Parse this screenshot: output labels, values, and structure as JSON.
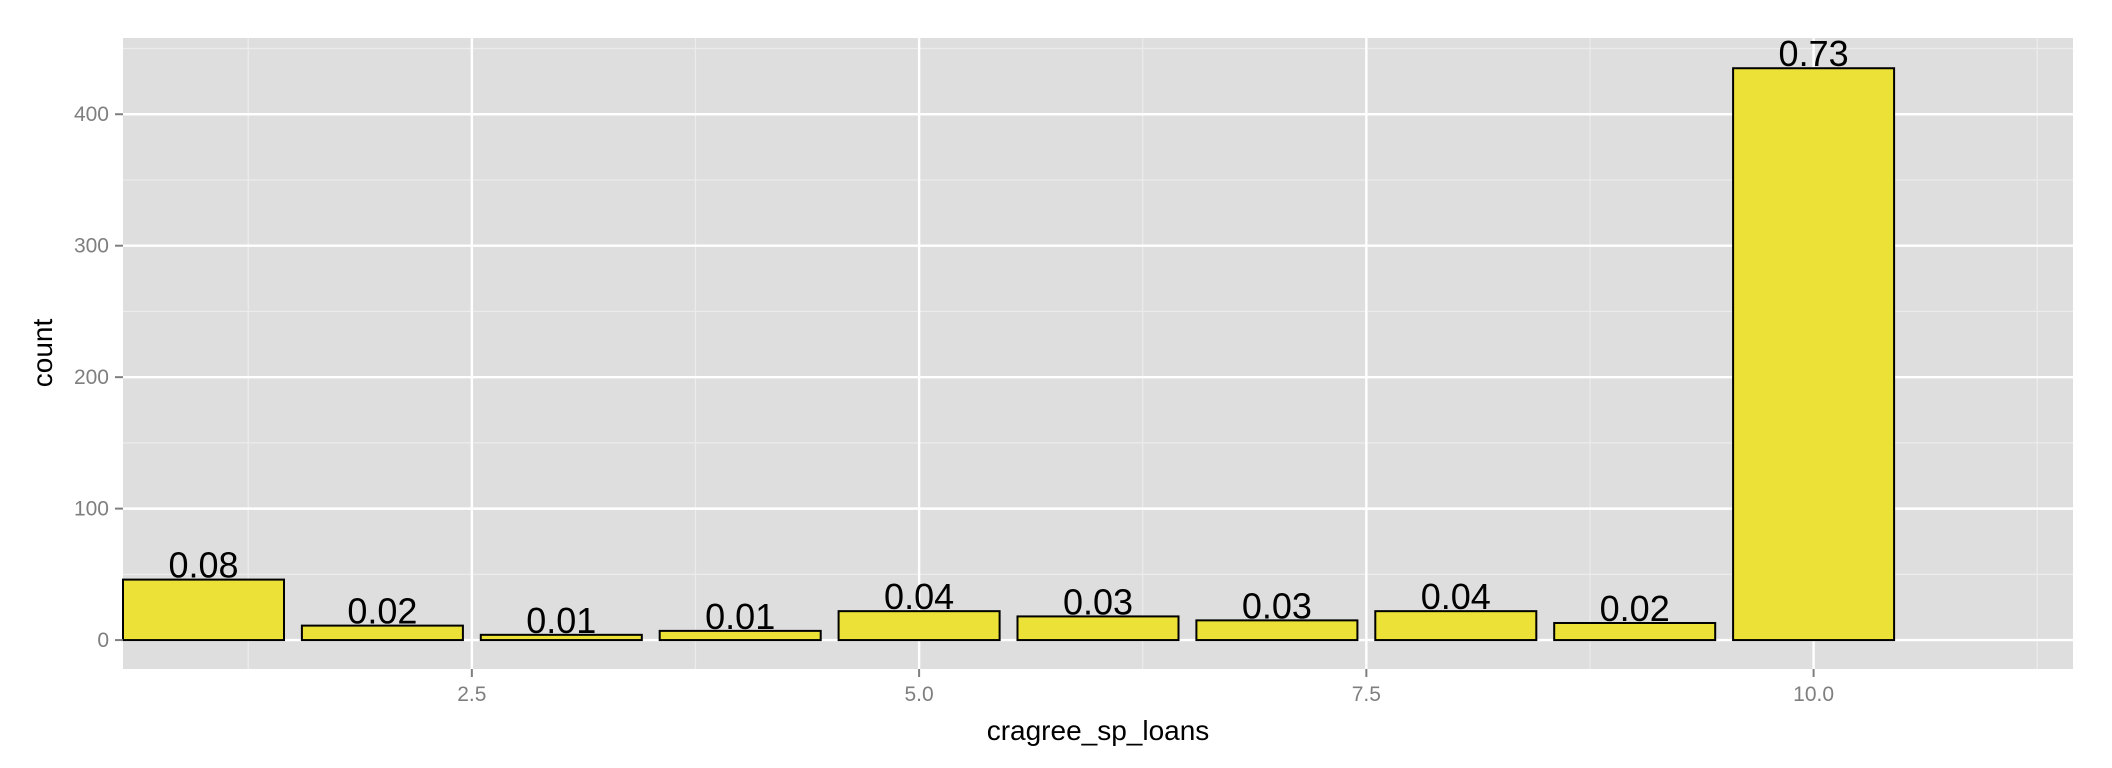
{
  "chart_data": {
    "type": "bar",
    "title": "",
    "xlabel": "cragree_sp_loans",
    "ylabel": "count",
    "x": [
      1,
      2,
      3,
      4,
      5,
      6,
      7,
      8,
      9,
      10
    ],
    "values": [
      46,
      11,
      4,
      7,
      22,
      18,
      15,
      22,
      13,
      435
    ],
    "labels": [
      "0.08",
      "0.02",
      "0.01",
      "0.01",
      "0.04",
      "0.03",
      "0.03",
      "0.04",
      "0.02",
      "0.73"
    ],
    "xlim": [
      0.55,
      11.45
    ],
    "ylim": [
      -22,
      458
    ],
    "x_ticks": [
      2.5,
      5.0,
      7.5,
      10.0
    ],
    "x_tick_labels": [
      "2.5",
      "5.0",
      "7.5",
      "10.0"
    ],
    "y_ticks": [
      0,
      100,
      200,
      300,
      400
    ],
    "y_tick_labels": [
      "0",
      "100",
      "200",
      "300",
      "400"
    ],
    "grid": true,
    "colors": {
      "bar_fill": "#ece136",
      "bar_stroke": "#000000",
      "panel_bg": "#dedede",
      "grid_major": "#ffffff",
      "grid_minor": "#ececec"
    }
  }
}
